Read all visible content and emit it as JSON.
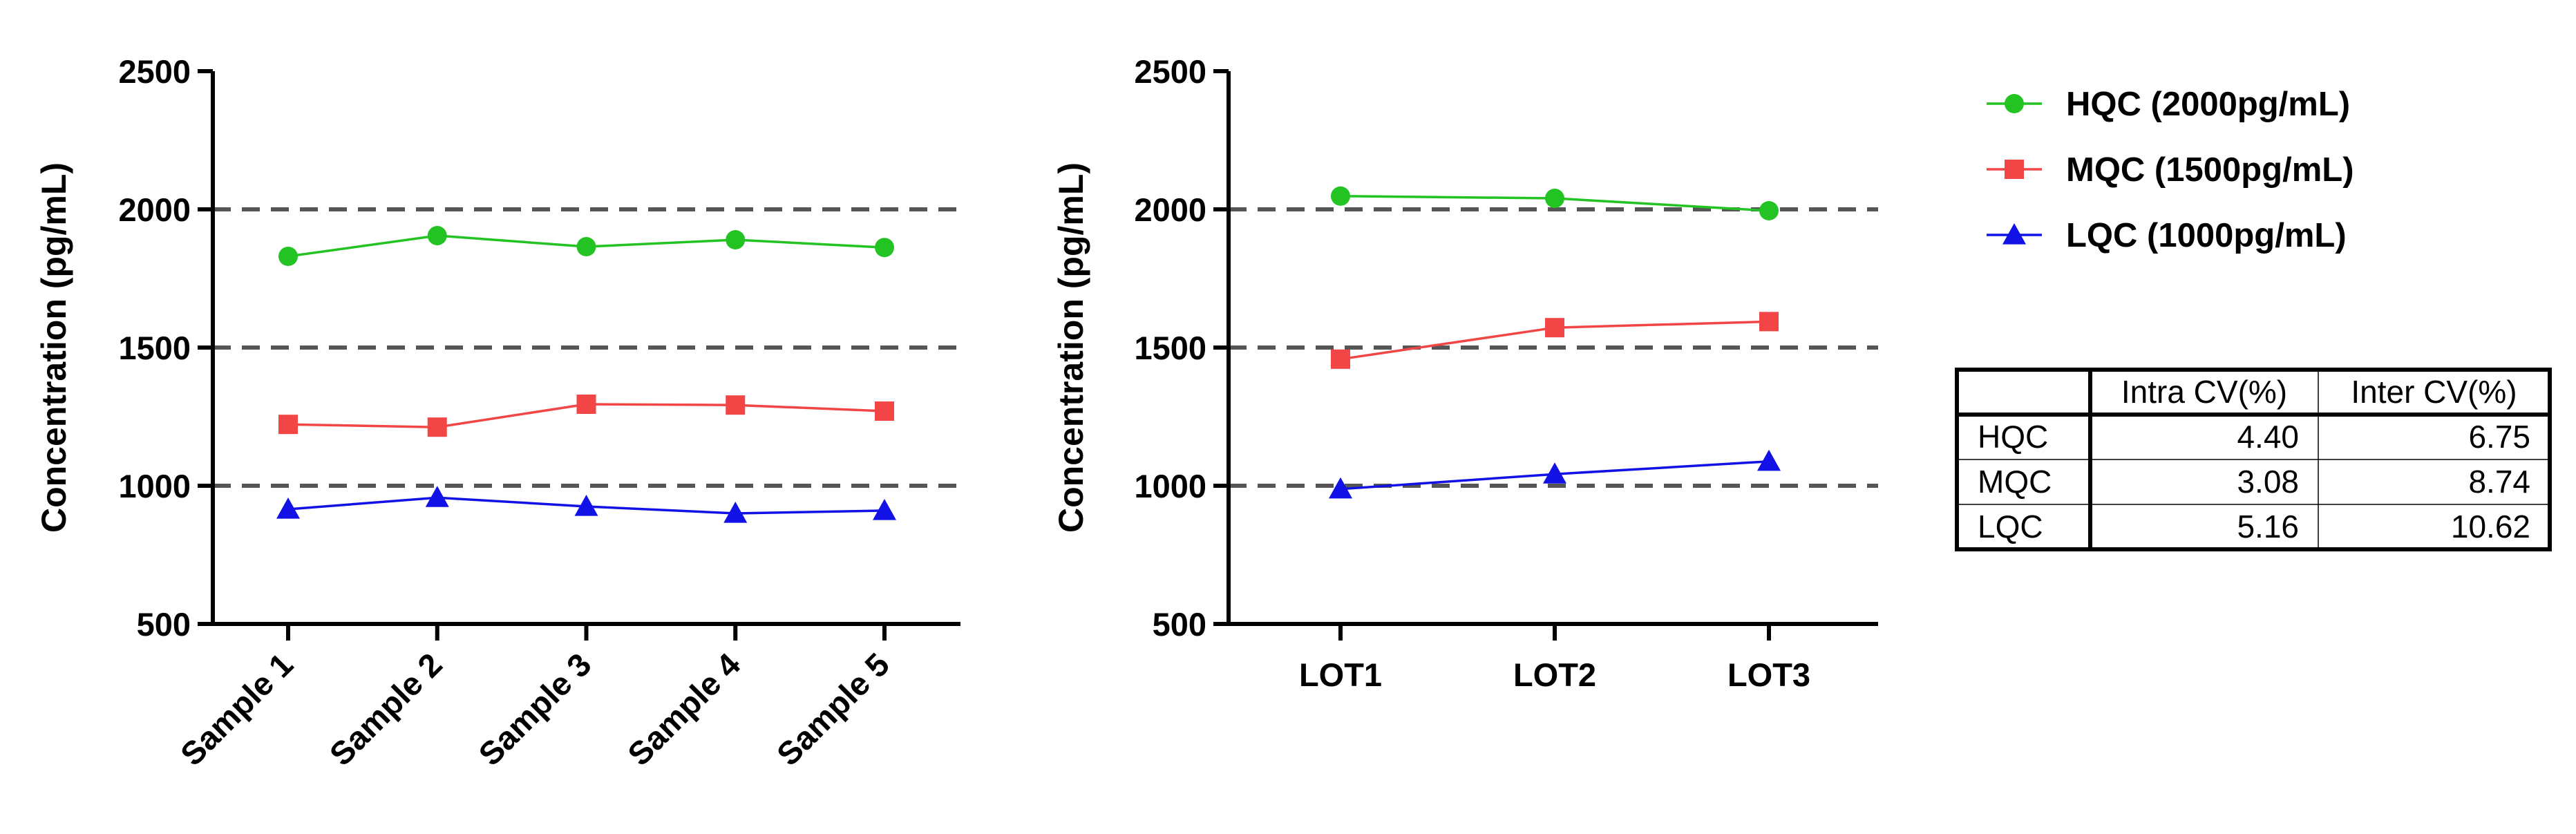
{
  "colors": {
    "HQC": "#22c322",
    "MQC": "#f24646",
    "LQC": "#1212e6",
    "reference": "#555555"
  },
  "legend": [
    {
      "key": "HQC",
      "label": "HQC (2000pg/mL)",
      "marker": "circle"
    },
    {
      "key": "MQC",
      "label": "MQC (1500pg/mL)",
      "marker": "square"
    },
    {
      "key": "LQC",
      "label": "LQC (1000pg/mL)",
      "marker": "triangle"
    }
  ],
  "chart_data": [
    {
      "type": "line",
      "ylabel": "Concentration (pg/mL)",
      "ylim": [
        500,
        2500
      ],
      "yticks": [
        500,
        1000,
        1500,
        2000,
        2500
      ],
      "categories": [
        "Sample 1",
        "Sample 2",
        "Sample 3",
        "Sample 4",
        "Sample 5"
      ],
      "reference_lines": [
        1000,
        1500,
        2000
      ],
      "series": [
        {
          "key": "HQC",
          "values": [
            1830,
            1905,
            1865,
            1890,
            1862
          ]
        },
        {
          "key": "MQC",
          "values": [
            1222,
            1212,
            1295,
            1292,
            1270
          ]
        },
        {
          "key": "LQC",
          "values": [
            915,
            957,
            925,
            900,
            910
          ]
        }
      ]
    },
    {
      "type": "line",
      "ylabel": "Concentration (pg/mL)",
      "ylim": [
        500,
        2500
      ],
      "yticks": [
        500,
        1000,
        1500,
        2000,
        2500
      ],
      "categories": [
        "LOT1",
        "LOT2",
        "LOT3"
      ],
      "reference_lines": [
        1000,
        1500,
        2000
      ],
      "series": [
        {
          "key": "HQC",
          "values": [
            2048,
            2040,
            1995
          ]
        },
        {
          "key": "MQC",
          "values": [
            1458,
            1572,
            1594
          ]
        },
        {
          "key": "LQC",
          "values": [
            988,
            1042,
            1088
          ]
        }
      ]
    }
  ],
  "cv_table": {
    "headers": [
      "",
      "Intra CV(%)",
      "Inter CV(%)"
    ],
    "rows": [
      [
        "HQC",
        "4.40",
        "6.75"
      ],
      [
        "MQC",
        "3.08",
        "8.74"
      ],
      [
        "LQC",
        "5.16",
        "10.62"
      ]
    ]
  }
}
